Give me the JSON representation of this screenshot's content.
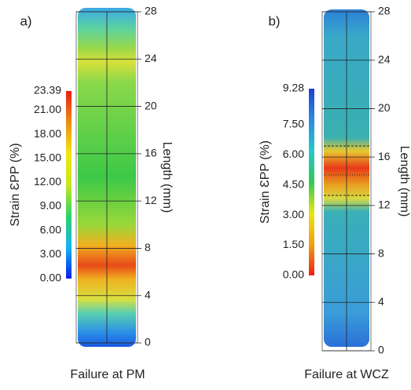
{
  "chart_data": [
    {
      "type": "strain-map",
      "panel_label": "a)",
      "colorbar_label": "Strain ƐPP (%)",
      "ylabel": "Length (mm)",
      "xlabel": "Failure at PM",
      "colorbar_lim": [
        0,
        23.39
      ],
      "colorbar_ticks": [
        {
          "value": 0,
          "label": "0.00"
        },
        {
          "value": 3,
          "label": "3.00"
        },
        {
          "value": 6,
          "label": "6.00"
        },
        {
          "value": 9,
          "label": "9.00"
        },
        {
          "value": 12,
          "label": "12.00"
        },
        {
          "value": 15,
          "label": "15.00"
        },
        {
          "value": 18,
          "label": "18.00"
        },
        {
          "value": 21,
          "label": "21.00"
        },
        23.39
      ],
      "colormap": [
        "#0a1cf0",
        "#14b4f0",
        "#2ed26a",
        "#c8e61e",
        "#f0e614",
        "#f08c14",
        "#e81e14"
      ],
      "ylim": [
        0,
        28
      ],
      "yticks": [
        0,
        4,
        8,
        12,
        16,
        20,
        24,
        28
      ]
    },
    {
      "type": "strain-map",
      "panel_label": "b)",
      "colorbar_label": "Strain ƐPP (%)",
      "ylabel": "Length (mm)",
      "xlabel": "Failure at WCZ",
      "colorbar_lim": [
        0,
        9.28
      ],
      "colorbar_ticks": [
        {
          "value": 0,
          "label": "0.00"
        },
        {
          "value": 1.5,
          "label": "1.50"
        },
        {
          "value": 3,
          "label": "3.00"
        },
        {
          "value": 4.5,
          "label": "4.50"
        },
        {
          "value": 6,
          "label": "6.00"
        },
        {
          "value": 7.5,
          "label": "7.50"
        },
        9.28
      ],
      "colormap": [
        "#f01e14",
        "#f0a014",
        "#e8e614",
        "#2ec85a",
        "#28c8c8",
        "#2a8ce0",
        "#2040d0"
      ],
      "ylim": [
        0,
        28
      ],
      "yticks": [
        0,
        4,
        8,
        12,
        16,
        20,
        24,
        28
      ]
    }
  ]
}
